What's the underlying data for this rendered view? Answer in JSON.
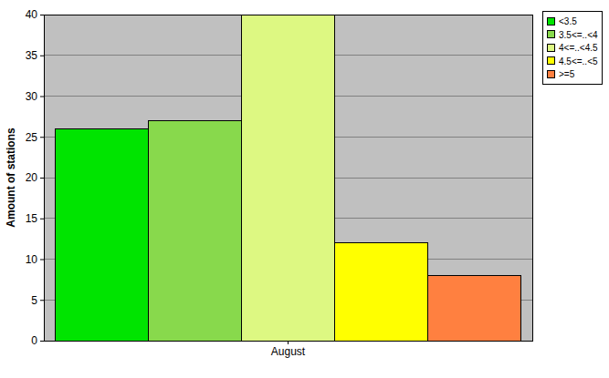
{
  "chart_data": {
    "type": "bar",
    "ylabel": "Amount of stations",
    "categories": [
      "August"
    ],
    "series": [
      {
        "name": "<3.5",
        "color": "#00e400",
        "values": [
          26
        ]
      },
      {
        "name": "3.5<=..<4",
        "color": "#88d94c",
        "values": [
          27
        ]
      },
      {
        "name": "4<=..<4.5",
        "color": "#ddf882",
        "values": [
          40
        ]
      },
      {
        "name": "4.5<=..<5",
        "color": "#ffff00",
        "values": [
          12
        ]
      },
      {
        "name": ">=5",
        "color": "#ff8040",
        "values": [
          8
        ]
      }
    ],
    "ylim": [
      0,
      40
    ],
    "yticks": [
      0,
      5,
      10,
      15,
      20,
      25,
      30,
      35,
      40
    ],
    "grid": true,
    "legend": "upper right"
  }
}
